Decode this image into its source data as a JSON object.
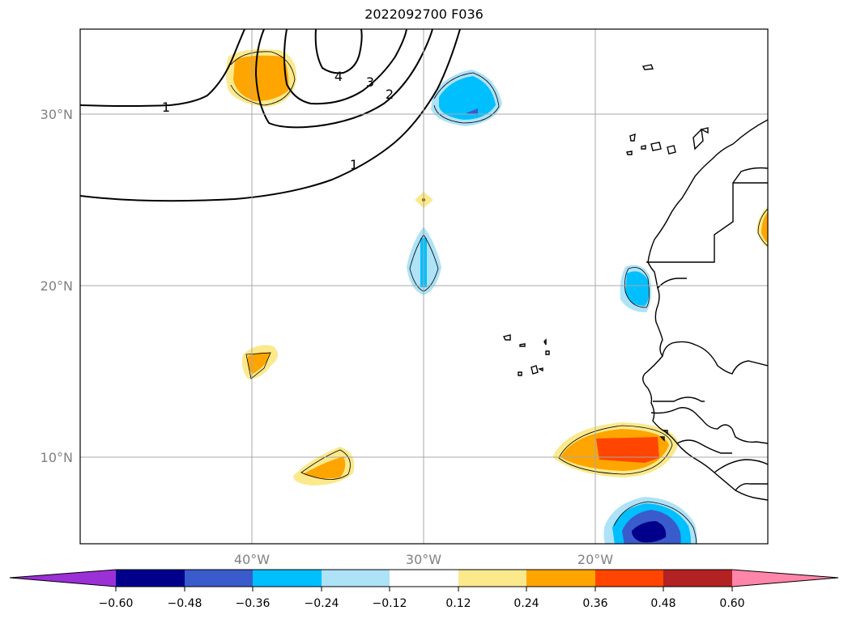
{
  "title": "2022092700 F036",
  "map": {
    "lat_labels": [
      "30°N",
      "20°N",
      "10°N"
    ],
    "lon_labels": [
      "40°W",
      "30°W",
      "20°W"
    ]
  },
  "contours": {
    "labels": [
      "1",
      "4",
      "3",
      "2",
      "1"
    ]
  },
  "colorbar": {
    "levels": [
      "−0.60",
      "−0.48",
      "−0.36",
      "−0.24",
      "−0.12",
      "0.12",
      "0.24",
      "0.36",
      "0.48",
      "0.60"
    ],
    "colors": {
      "under": "#9b30d6",
      "c1": "#00008b",
      "c2": "#3a5bcc",
      "c3": "#00bfff",
      "c4": "#aee2f7",
      "c5": "#ffffff",
      "c6": "#fbe98c",
      "c7": "#ffa500",
      "c8": "#ff4500",
      "c9": "#b22222",
      "over": "#ff85aa"
    }
  }
}
